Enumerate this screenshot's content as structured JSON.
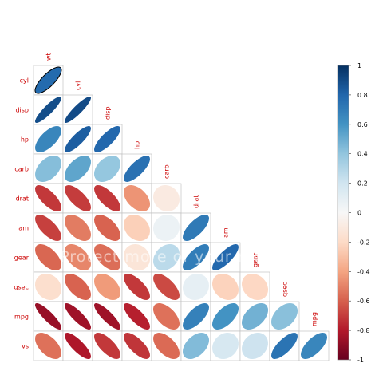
{
  "chart_data": {
    "type": "heatmap",
    "style": "ellipse correlation plot, lower triangle",
    "variables": [
      "wt",
      "cyl",
      "disp",
      "hp",
      "carb",
      "drat",
      "am",
      "gear",
      "qsec",
      "mpg",
      "vs"
    ],
    "rows": [
      {
        "name": "cyl",
        "values": [
          0.78
        ]
      },
      {
        "name": "disp",
        "values": [
          0.89,
          0.9
        ]
      },
      {
        "name": "hp",
        "values": [
          0.66,
          0.83,
          0.79
        ]
      },
      {
        "name": "carb",
        "values": [
          0.43,
          0.53,
          0.39,
          0.75
        ]
      },
      {
        "name": "drat",
        "values": [
          -0.71,
          -0.7,
          -0.71,
          -0.45,
          -0.09
        ]
      },
      {
        "name": "am",
        "values": [
          -0.69,
          -0.52,
          -0.59,
          -0.24,
          0.06,
          0.71
        ]
      },
      {
        "name": "gear",
        "values": [
          -0.58,
          -0.49,
          -0.56,
          -0.13,
          0.27,
          0.7,
          0.79
        ]
      },
      {
        "name": "qsec",
        "values": [
          -0.17,
          -0.59,
          -0.43,
          -0.71,
          -0.66,
          0.09,
          -0.23,
          -0.21
        ]
      },
      {
        "name": "mpg",
        "values": [
          -0.87,
          -0.85,
          -0.85,
          -0.78,
          -0.55,
          0.68,
          0.6,
          0.48,
          0.42
        ]
      },
      {
        "name": "vs",
        "values": [
          -0.55,
          -0.81,
          -0.71,
          -0.72,
          -0.57,
          0.44,
          0.17,
          0.21,
          0.74,
          0.66
        ]
      }
    ],
    "colorbar": {
      "min": -1,
      "max": 1,
      "ticks": [
        "1",
        "0.8",
        "0.6",
        "0.4",
        "0.2",
        "0",
        "-0.2",
        "-0.4",
        "-0.6",
        "-0.8",
        "-1"
      ],
      "colors": {
        "negative": "#67001f",
        "neutral": "#f7f7f7",
        "positive": "#053061"
      }
    },
    "watermark": "Protect more of your memories"
  }
}
